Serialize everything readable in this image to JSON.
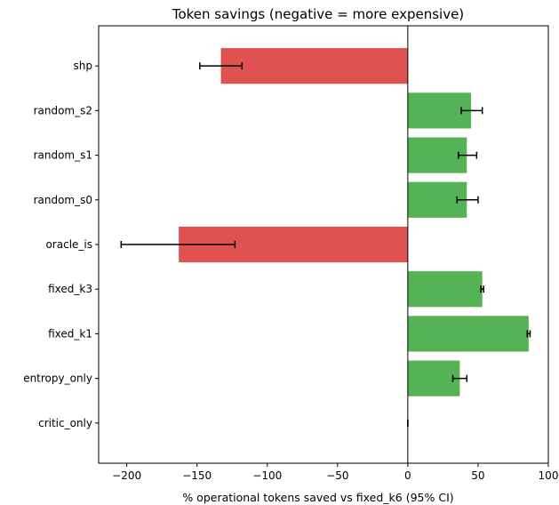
{
  "chart_data": {
    "type": "bar",
    "orientation": "horizontal",
    "title": "Token savings (negative = more expensive)",
    "xlabel": "% operational tokens saved vs fixed_k6 (95% CI)",
    "ylabel": "",
    "xlim": [
      -220,
      100
    ],
    "xticks": [
      -200,
      -150,
      -100,
      -50,
      0,
      50,
      100
    ],
    "xtick_labels": [
      "−200",
      "−150",
      "−100",
      "−50",
      "0",
      "50",
      "100"
    ],
    "zero_line": true,
    "grid": false,
    "colors": {
      "positive": "#55b355",
      "negative": "#e05252"
    },
    "categories": [
      "shp",
      "random_s2",
      "random_s1",
      "random_s0",
      "oracle_is",
      "fixed_k3",
      "fixed_k1",
      "entropy_only",
      "critic_only"
    ],
    "values": [
      -133,
      45,
      42,
      42,
      -163,
      53,
      86,
      37,
      0
    ],
    "ci_low": [
      -148,
      38,
      36,
      35,
      -204,
      52,
      85,
      32,
      0
    ],
    "ci_high": [
      -118,
      53,
      49,
      50,
      -123,
      54,
      87,
      42,
      0
    ]
  }
}
